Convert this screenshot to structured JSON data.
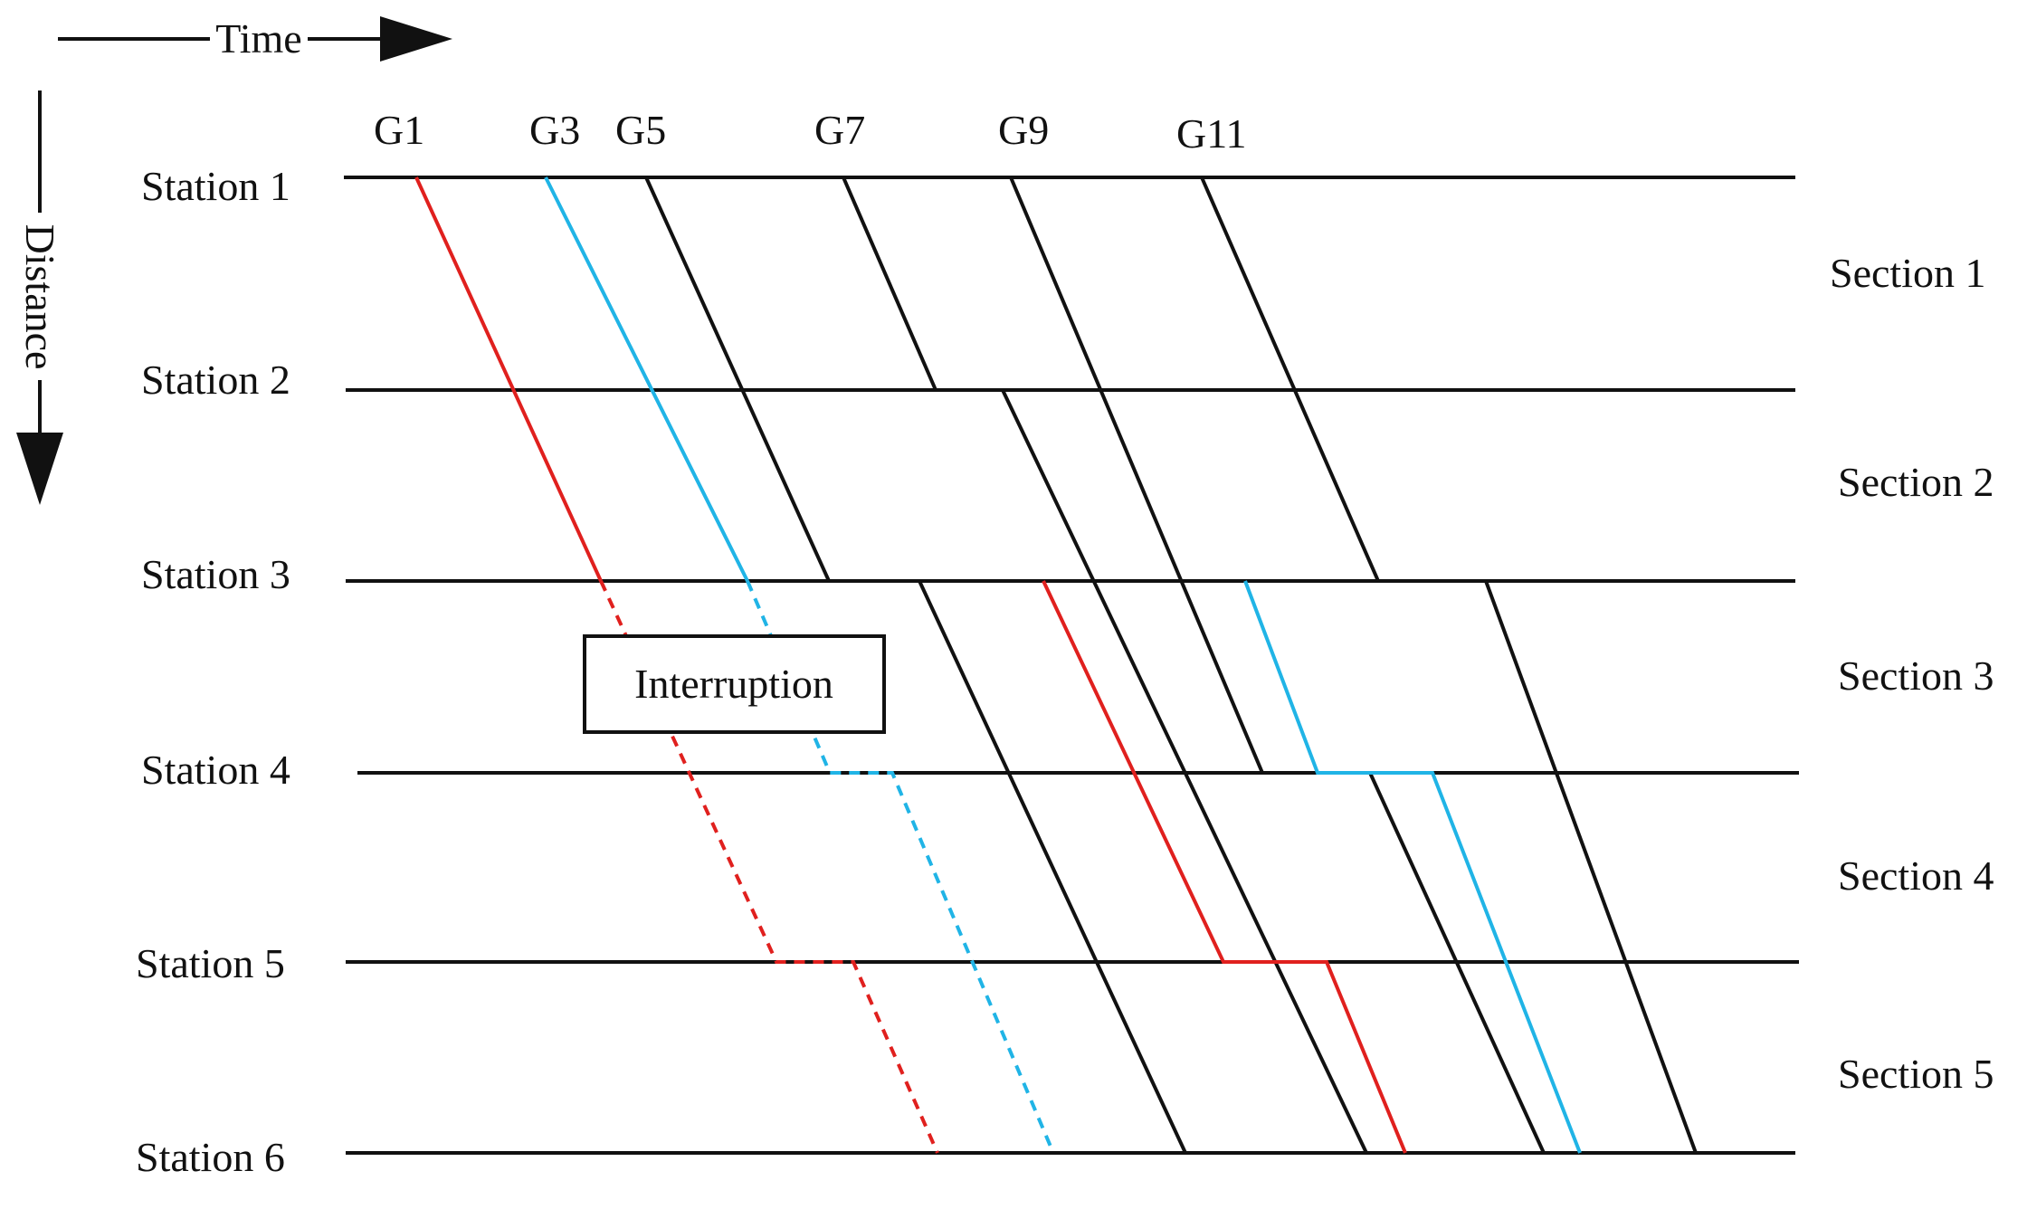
{
  "axes": {
    "time_label": "Time",
    "distance_label": "Distance"
  },
  "stations": [
    {
      "id": 1,
      "label": "Station 1"
    },
    {
      "id": 2,
      "label": "Station 2"
    },
    {
      "id": 3,
      "label": "Station 3"
    },
    {
      "id": 4,
      "label": "Station 4"
    },
    {
      "id": 5,
      "label": "Station 5"
    },
    {
      "id": 6,
      "label": "Station 6"
    }
  ],
  "sections": [
    {
      "id": 1,
      "label": "Section 1"
    },
    {
      "id": 2,
      "label": "Section 2"
    },
    {
      "id": 3,
      "label": "Section 3"
    },
    {
      "id": 4,
      "label": "Section 4"
    },
    {
      "id": 5,
      "label": "Section 5"
    }
  ],
  "train_labels": [
    "G1",
    "G3",
    "G5",
    "G7",
    "G9",
    "G11"
  ],
  "interruption_label": "Interruption",
  "colors": {
    "line": "#111111",
    "red": "#e0201e",
    "blue": "#20b4e6"
  }
}
